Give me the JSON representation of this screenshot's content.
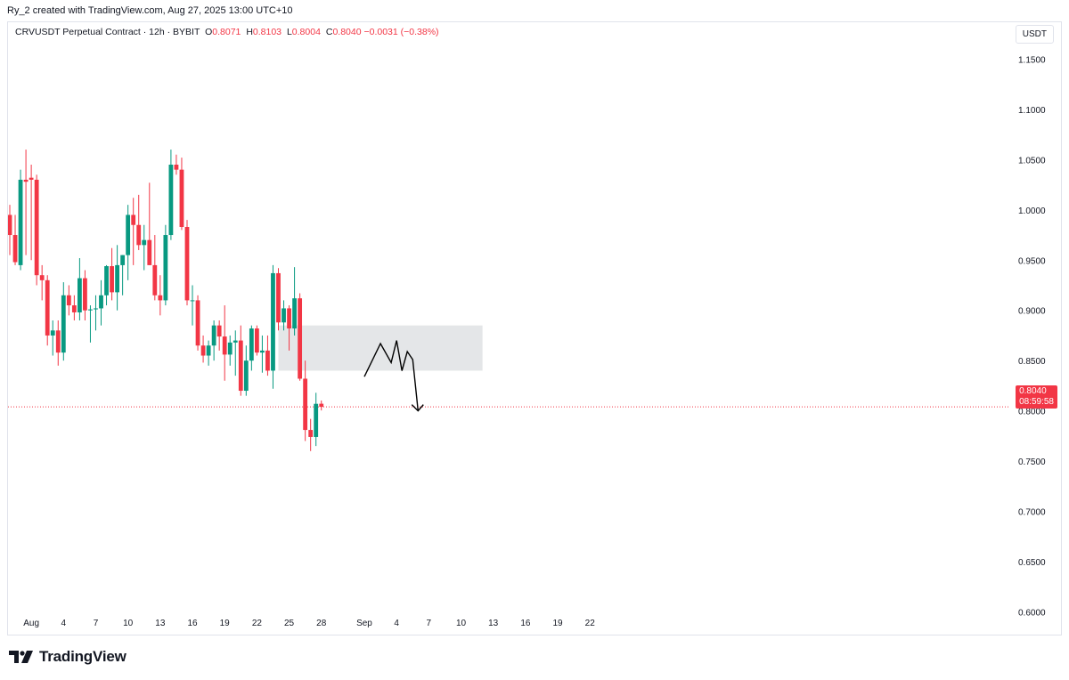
{
  "header": {
    "credit": "Ry_2 created with TradingView.com, Aug 27, 2025 13:00 UTC+10"
  },
  "legend": {
    "symbol": "CRVUSDT Perpetual Contract · 12h · BYBIT",
    "o_label": "O",
    "o_value": "0.8071",
    "h_label": "H",
    "h_value": "0.8103",
    "l_label": "L",
    "l_value": "0.8004",
    "c_label": "C",
    "c_value": "0.8040",
    "change": "−0.0031 (−0.38%)"
  },
  "currency": "USDT",
  "last_price": {
    "price": "0.8040",
    "countdown": "08:59:58"
  },
  "brand": "TradingView",
  "colors": {
    "up": "#089981",
    "down": "#f23645",
    "zone": "#e1e3e6",
    "text": "#131722",
    "axis_text": "#131722"
  },
  "chart_data": {
    "type": "candlestick",
    "interval": "12h",
    "ylim": [
      0.58,
      1.2
    ],
    "y_ticks": [
      "1.1500",
      "1.1000",
      "1.0500",
      "1.0000",
      "0.9500",
      "0.9000",
      "0.8500",
      "0.8000",
      "0.7500",
      "0.7000",
      "0.6500",
      "0.6000"
    ],
    "x_ticks": [
      {
        "label": "Aug",
        "index": 4
      },
      {
        "label": "4",
        "index": 10
      },
      {
        "label": "7",
        "index": 16
      },
      {
        "label": "10",
        "index": 22
      },
      {
        "label": "13",
        "index": 28
      },
      {
        "label": "16",
        "index": 34
      },
      {
        "label": "19",
        "index": 40
      },
      {
        "label": "22",
        "index": 46
      },
      {
        "label": "25",
        "index": 52
      },
      {
        "label": "28",
        "index": 58
      },
      {
        "label": "Sep",
        "index": 66
      },
      {
        "label": "4",
        "index": 72
      },
      {
        "label": "7",
        "index": 78
      },
      {
        "label": "10",
        "index": 84
      },
      {
        "label": "13",
        "index": 90
      },
      {
        "label": "16",
        "index": 96
      },
      {
        "label": "19",
        "index": 102
      },
      {
        "label": "22",
        "index": 108
      }
    ],
    "candles": [
      [
        0.995,
        1.005,
        0.955,
        0.975
      ],
      [
        0.975,
        0.995,
        0.945,
        0.948
      ],
      [
        0.945,
        1.04,
        0.94,
        1.03
      ],
      [
        1.03,
        1.06,
        0.955,
        1.028
      ],
      [
        1.032,
        1.045,
        0.95,
        1.03
      ],
      [
        1.03,
        1.035,
        0.925,
        0.935
      ],
      [
        0.935,
        0.945,
        0.91,
        0.93
      ],
      [
        0.93,
        0.935,
        0.865,
        0.875
      ],
      [
        0.875,
        0.89,
        0.855,
        0.88
      ],
      [
        0.88,
        0.89,
        0.845,
        0.858
      ],
      [
        0.858,
        0.928,
        0.85,
        0.915
      ],
      [
        0.915,
        0.925,
        0.895,
        0.905
      ],
      [
        0.905,
        0.915,
        0.89,
        0.898
      ],
      [
        0.898,
        0.952,
        0.89,
        0.932
      ],
      [
        0.932,
        0.94,
        0.89,
        0.9
      ],
      [
        0.9,
        0.905,
        0.868,
        0.901
      ],
      [
        0.901,
        0.915,
        0.88,
        0.902
      ],
      [
        0.902,
        0.93,
        0.885,
        0.915
      ],
      [
        0.915,
        0.945,
        0.905,
        0.944
      ],
      [
        0.944,
        0.962,
        0.91,
        0.918
      ],
      [
        0.918,
        0.965,
        0.9,
        0.945
      ],
      [
        0.945,
        0.955,
        0.915,
        0.955
      ],
      [
        0.955,
        1.005,
        0.93,
        0.995
      ],
      [
        0.995,
        1.012,
        0.945,
        0.985
      ],
      [
        0.985,
        1.015,
        0.96,
        0.965
      ],
      [
        0.965,
        0.985,
        0.94,
        0.97
      ],
      [
        0.97,
        1.027,
        0.945,
        0.945
      ],
      [
        0.945,
        0.975,
        0.91,
        0.915
      ],
      [
        0.915,
        0.935,
        0.895,
        0.91
      ],
      [
        0.91,
        0.985,
        0.905,
        0.975
      ],
      [
        0.975,
        1.06,
        0.97,
        1.045
      ],
      [
        1.045,
        1.055,
        1.035,
        1.04
      ],
      [
        1.04,
        1.052,
        0.98,
        0.983
      ],
      [
        0.983,
        0.99,
        0.905,
        0.91
      ],
      [
        0.91,
        0.925,
        0.885,
        0.91
      ],
      [
        0.91,
        0.915,
        0.86,
        0.865
      ],
      [
        0.865,
        0.875,
        0.848,
        0.855
      ],
      [
        0.855,
        0.87,
        0.845,
        0.865
      ],
      [
        0.865,
        0.89,
        0.85,
        0.885
      ],
      [
        0.885,
        0.89,
        0.86,
        0.874
      ],
      [
        0.874,
        0.905,
        0.83,
        0.856
      ],
      [
        0.856,
        0.875,
        0.845,
        0.868
      ],
      [
        0.868,
        0.88,
        0.835,
        0.87
      ],
      [
        0.87,
        0.885,
        0.815,
        0.82
      ],
      [
        0.82,
        0.865,
        0.815,
        0.85
      ],
      [
        0.85,
        0.885,
        0.84,
        0.882
      ],
      [
        0.882,
        0.885,
        0.855,
        0.858
      ],
      [
        0.858,
        0.875,
        0.838,
        0.86
      ],
      [
        0.86,
        0.875,
        0.835,
        0.84
      ],
      [
        0.84,
        0.945,
        0.822,
        0.937
      ],
      [
        0.937,
        0.942,
        0.88,
        0.888
      ],
      [
        0.888,
        0.91,
        0.88,
        0.902
      ],
      [
        0.902,
        0.905,
        0.86,
        0.882
      ],
      [
        0.882,
        0.943,
        0.875,
        0.912
      ],
      [
        0.912,
        0.917,
        0.83,
        0.832
      ],
      [
        0.832,
        0.85,
        0.77,
        0.781
      ],
      [
        0.781,
        0.792,
        0.76,
        0.774
      ],
      [
        0.774,
        0.818,
        0.765,
        0.807
      ],
      [
        0.8071,
        0.8103,
        0.8004,
        0.804
      ]
    ],
    "zone": {
      "x_start_index": 50,
      "x_end_index": 88,
      "y_top": 0.885,
      "y_bottom": 0.84
    },
    "projection": [
      [
        66,
        0.834
      ],
      [
        69,
        0.867
      ],
      [
        71,
        0.848
      ],
      [
        72,
        0.87
      ],
      [
        73,
        0.84
      ],
      [
        74,
        0.859
      ],
      [
        75,
        0.851
      ],
      [
        76,
        0.8
      ]
    ]
  }
}
